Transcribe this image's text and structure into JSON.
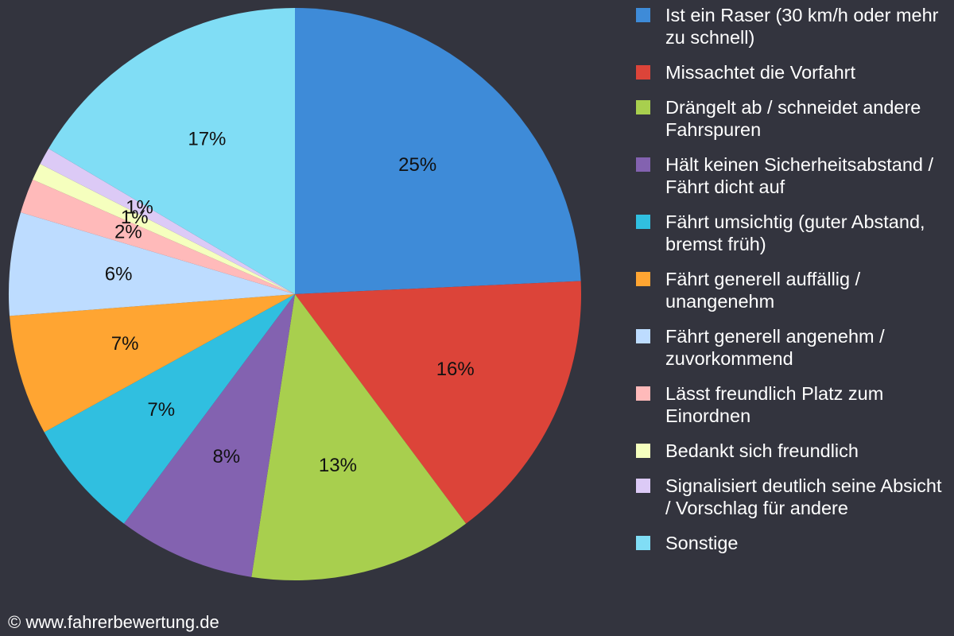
{
  "chart_data": {
    "type": "pie",
    "categories": [
      "Ist ein Raser (30 km/h oder mehr zu schnell)",
      "Missachtet die Vorfahrt",
      "Drängelt ab / schneidet andere Fahrspuren",
      "Hält keinen Sicherheitsabstand / Fährt dicht auf",
      "Fährt umsichtig (guter Abstand, bremst früh)",
      "Fährt generell auffällig / unangenehm",
      "Fährt generell angenehm / zuvorkommend",
      "Lässt freundlich Platz zum Einordnen",
      "Bedankt sich freundlich",
      "Signalisiert deutlich seine Absicht / Vorschlag für andere",
      "Sonstige"
    ],
    "values": [
      25,
      16,
      13,
      8,
      7,
      7,
      6,
      2,
      1,
      1,
      17
    ],
    "value_labels": [
      "25%",
      "16%",
      "13%",
      "8%",
      "7%",
      "7%",
      "6%",
      "2%",
      "1%",
      "1%",
      "17%"
    ],
    "colors": [
      "#3e8bd8",
      "#dc4439",
      "#a8cf4e",
      "#8362b0",
      "#30bfe0",
      "#ffa532",
      "#bddcff",
      "#ffbaba",
      "#f5ffbe",
      "#dccaf6",
      "#80ddf5"
    ],
    "legend": "right"
  },
  "footer": "© www.fahrerbewertung.de"
}
